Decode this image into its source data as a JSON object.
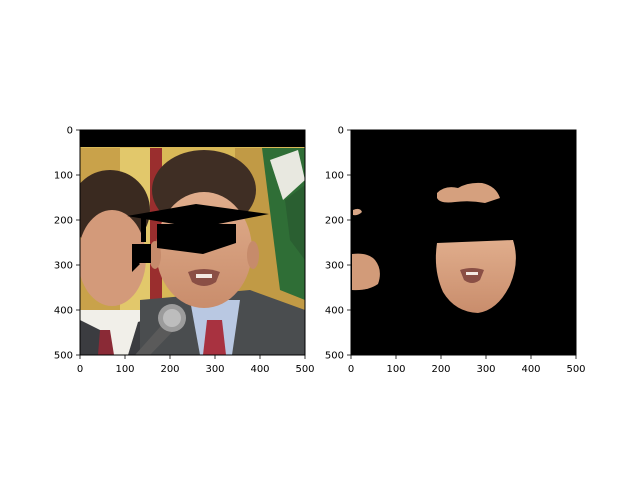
{
  "figure": {
    "panels": [
      {
        "name": "left",
        "xlim": [
          0,
          500
        ],
        "ylim": [
          500,
          0
        ],
        "xticks": [
          "0",
          "100",
          "200",
          "300",
          "400",
          "500"
        ],
        "yticks": [
          "0",
          "100",
          "200",
          "300",
          "400",
          "500"
        ],
        "content": "photo-of-man-in-suit-with-black-occlusion-mask",
        "colors": {
          "background_flags": "#d8b857",
          "suit": "#4a4d4f",
          "shirt": "#b9c8e2",
          "tie": "#a83240",
          "occlusion": "#000000"
        }
      },
      {
        "name": "right",
        "xlim": [
          0,
          500
        ],
        "ylim": [
          500,
          0
        ],
        "xticks": [
          "0",
          "100",
          "200",
          "300",
          "400",
          "500"
        ],
        "yticks": [
          "0",
          "100",
          "200",
          "300",
          "400",
          "500"
        ],
        "content": "segmented-skin-regions-on-black",
        "colors": {
          "background": "#000000",
          "skin": "#d9a382"
        }
      }
    ]
  }
}
